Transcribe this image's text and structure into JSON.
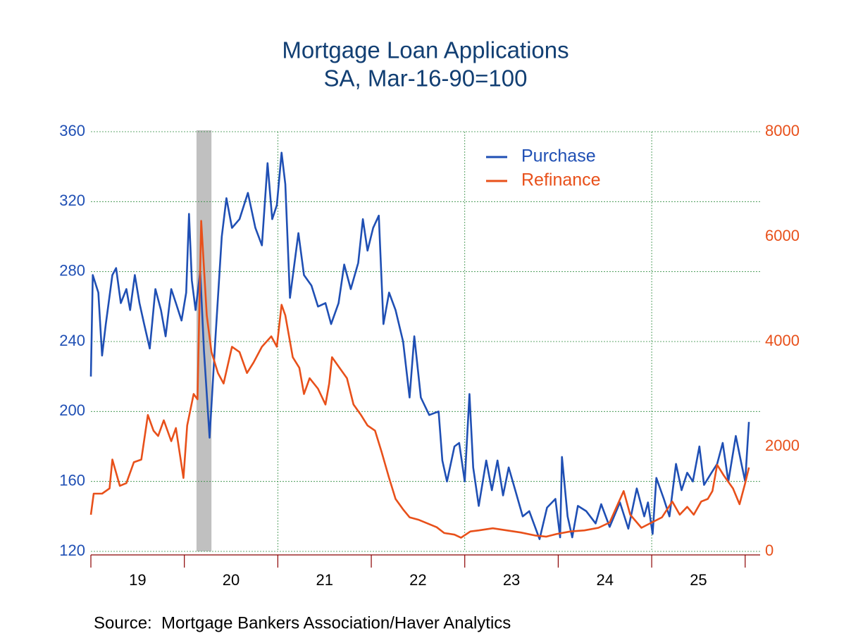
{
  "chart_data": {
    "type": "line",
    "title": "Mortgage Loan Applications",
    "subtitle": "SA, Mar-16-90=100",
    "source": "Source:  Mortgage Bankers Association/Haver Analytics",
    "xlim": [
      19,
      26.16
    ],
    "xticks": [
      {
        "value": 19.5,
        "label": "19"
      },
      {
        "value": 20.5,
        "label": "20"
      },
      {
        "value": 21.5,
        "label": "21"
      },
      {
        "value": 22.5,
        "label": "22"
      },
      {
        "value": 23.5,
        "label": "23"
      },
      {
        "value": 24.5,
        "label": "24"
      },
      {
        "value": 25.5,
        "label": "25"
      }
    ],
    "x_tick_marks": [
      19,
      20,
      21,
      22,
      23,
      24,
      25,
      26
    ],
    "x_grid_lines": [
      21,
      23,
      25
    ],
    "ylim": [
      120,
      360
    ],
    "yticks": [
      120,
      160,
      200,
      240,
      280,
      320,
      360
    ],
    "y2lim": [
      0,
      8000
    ],
    "y2ticks": [
      0,
      2000,
      4000,
      6000,
      8000
    ],
    "grid": true,
    "legend": "upper right",
    "shaded_regions": [
      [
        20.13,
        20.29
      ]
    ],
    "shade_color": "#c0c0c0",
    "series": [
      {
        "name": "Purchase",
        "color": "#1f4fb4",
        "axis": "y",
        "x": [
          19.0,
          19.02,
          19.08,
          19.12,
          19.16,
          19.23,
          19.27,
          19.32,
          19.38,
          19.42,
          19.47,
          19.52,
          19.57,
          19.63,
          19.69,
          19.75,
          19.8,
          19.86,
          19.91,
          19.97,
          20.02,
          20.05,
          20.08,
          20.12,
          20.17,
          20.21,
          20.27,
          20.33,
          20.4,
          20.45,
          20.51,
          20.59,
          20.68,
          20.76,
          20.83,
          20.89,
          20.94,
          20.99,
          21.04,
          21.08,
          21.13,
          21.22,
          21.28,
          21.36,
          21.43,
          21.51,
          21.57,
          21.65,
          21.71,
          21.78,
          21.86,
          21.91,
          21.96,
          22.02,
          22.08,
          22.13,
          22.19,
          22.26,
          22.34,
          22.41,
          22.46,
          22.53,
          22.62,
          22.72,
          22.76,
          22.81,
          22.89,
          22.94,
          23.0,
          23.05,
          23.09,
          23.15,
          23.23,
          23.29,
          23.35,
          23.41,
          23.47,
          23.54,
          23.62,
          23.69,
          23.8,
          23.88,
          23.97,
          24.02,
          24.04,
          24.1,
          24.15,
          24.21,
          24.3,
          24.4,
          24.46,
          24.55,
          24.66,
          24.75,
          24.84,
          24.92,
          24.96,
          25.01,
          25.05,
          25.13,
          25.19,
          25.26,
          25.32,
          25.38,
          25.44,
          25.51,
          25.56,
          25.64,
          25.7,
          25.76,
          25.82,
          25.9,
          25.96,
          26.0,
          26.04
        ],
        "values": [
          220,
          278,
          268,
          232,
          250,
          278,
          282,
          262,
          270,
          258,
          278,
          262,
          250,
          236,
          270,
          258,
          243,
          270,
          262,
          252,
          268,
          313,
          275,
          258,
          280,
          235,
          185,
          240,
          300,
          322,
          305,
          310,
          325,
          305,
          295,
          342,
          310,
          318,
          348,
          330,
          265,
          302,
          278,
          272,
          260,
          262,
          250,
          262,
          284,
          270,
          285,
          310,
          292,
          305,
          312,
          250,
          268,
          258,
          240,
          208,
          243,
          208,
          198,
          200,
          172,
          160,
          180,
          182,
          160,
          210,
          168,
          146,
          172,
          155,
          172,
          152,
          168,
          155,
          140,
          143,
          127,
          145,
          150,
          128,
          174,
          140,
          128,
          146,
          143,
          136,
          147,
          134,
          148,
          133,
          156,
          140,
          148,
          130,
          162,
          150,
          140,
          170,
          155,
          165,
          160,
          180,
          158,
          165,
          170,
          182,
          160,
          186,
          170,
          160,
          194
        ]
      },
      {
        "name": "Refinance",
        "color": "#e8501a",
        "axis": "y2",
        "x": [
          19.0,
          19.03,
          19.12,
          19.2,
          19.23,
          19.31,
          19.38,
          19.46,
          19.54,
          19.61,
          19.67,
          19.72,
          19.78,
          19.86,
          19.91,
          19.99,
          20.03,
          20.1,
          20.14,
          20.18,
          20.24,
          20.29,
          20.36,
          20.42,
          20.51,
          20.59,
          20.67,
          20.74,
          20.83,
          20.93,
          20.99,
          21.04,
          21.08,
          21.16,
          21.23,
          21.28,
          21.34,
          21.43,
          21.51,
          21.55,
          21.58,
          21.66,
          21.74,
          21.81,
          21.89,
          21.96,
          22.04,
          22.11,
          22.19,
          22.26,
          22.34,
          22.41,
          22.51,
          22.62,
          22.7,
          22.78,
          22.89,
          22.96,
          23.06,
          23.15,
          23.3,
          23.45,
          23.6,
          23.76,
          23.87,
          23.98,
          24.13,
          24.28,
          24.43,
          24.55,
          24.7,
          24.77,
          24.89,
          25.0,
          25.11,
          25.22,
          25.3,
          25.38,
          25.45,
          25.53,
          25.6,
          25.65,
          25.7,
          25.77,
          25.87,
          25.94,
          26.0,
          26.04
        ],
        "values": [
          700,
          1100,
          1100,
          1200,
          1750,
          1250,
          1300,
          1700,
          1750,
          2600,
          2300,
          2200,
          2500,
          2100,
          2350,
          1400,
          2400,
          3000,
          2900,
          6300,
          4500,
          3800,
          3400,
          3200,
          3900,
          3800,
          3400,
          3600,
          3900,
          4100,
          3900,
          4700,
          4500,
          3700,
          3500,
          3000,
          3300,
          3100,
          2800,
          3200,
          3700,
          3500,
          3300,
          2800,
          2600,
          2400,
          2300,
          1900,
          1400,
          1000,
          800,
          650,
          600,
          520,
          460,
          350,
          320,
          260,
          380,
          400,
          440,
          400,
          360,
          300,
          280,
          330,
          380,
          400,
          450,
          550,
          1150,
          700,
          450,
          550,
          650,
          950,
          700,
          850,
          700,
          950,
          1000,
          1150,
          1650,
          1450,
          1200,
          900,
          1300,
          1600
        ]
      }
    ]
  }
}
